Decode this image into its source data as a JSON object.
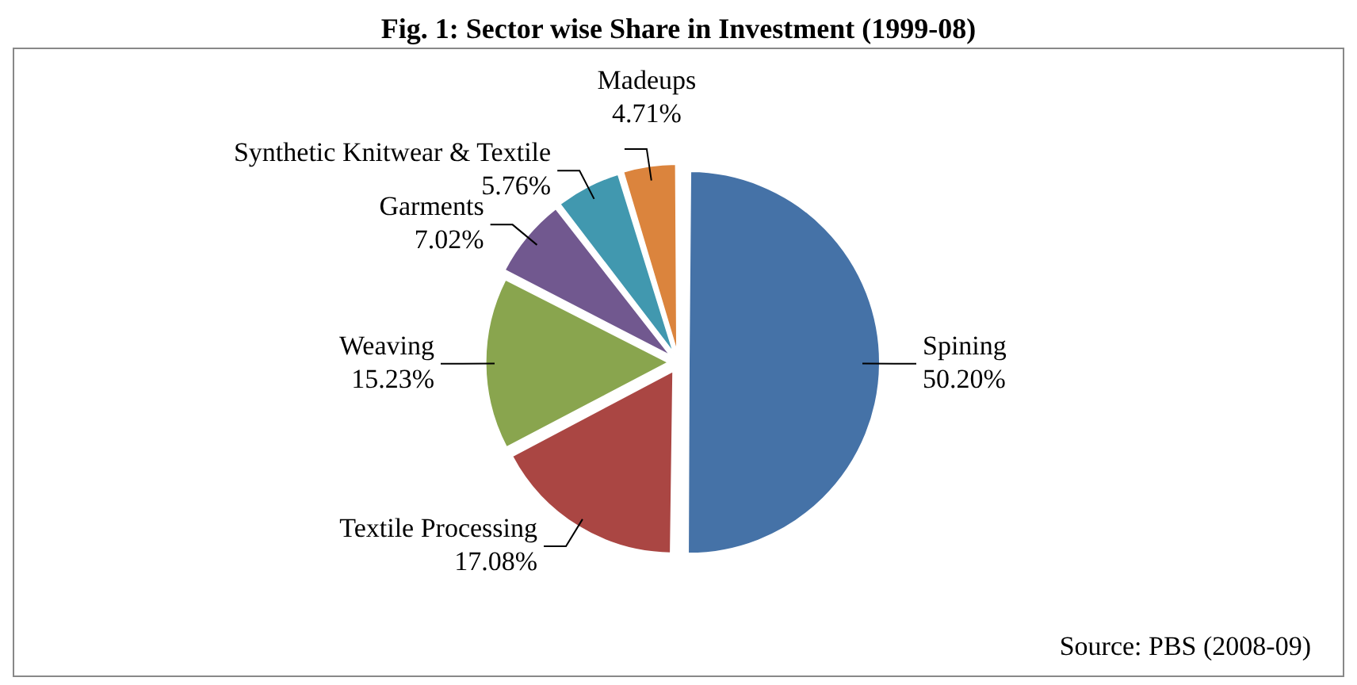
{
  "chart_data": {
    "type": "pie",
    "title": "Fig. 1: Sector wise Share in Investment (1999-08)",
    "categories": [
      "Spining",
      "Textile Processing",
      "Weaving",
      "Garments",
      "Synthetic Knitwear & Textile",
      "Madeups"
    ],
    "values": [
      50.2,
      17.08,
      15.23,
      7.02,
      5.76,
      4.71
    ],
    "value_labels": [
      "50.20%",
      "17.08%",
      "15.23%",
      "7.02%",
      "5.76%",
      "4.71%"
    ],
    "colors": [
      "#4572a7",
      "#aa4643",
      "#89a54e",
      "#71588f",
      "#4198af",
      "#db843d"
    ],
    "legend": false,
    "annotations": [
      "Source: PBS (2008-09)"
    ]
  }
}
